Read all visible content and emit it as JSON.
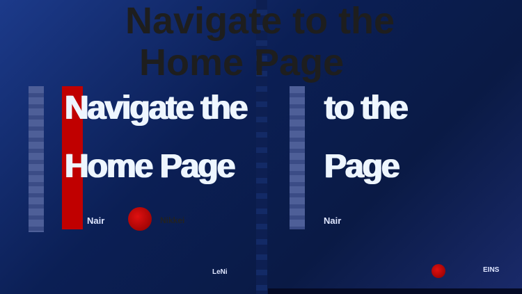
{
  "headline": {
    "ghost_line1": "Navigate to the",
    "ghost_line2": "Home Page",
    "left_line1": "Navigate the",
    "left_line2": "Home Page",
    "right_line1": "to the",
    "right_line2": "Page"
  },
  "logos": {
    "left_brand": "Nair",
    "left_partner": "Nikkei",
    "right_brand": "Nair",
    "bottom_left": "LeNi",
    "bottom_right": "EINS"
  },
  "colors": {
    "accent_red": "#c00000",
    "background": "#0b1f55"
  }
}
